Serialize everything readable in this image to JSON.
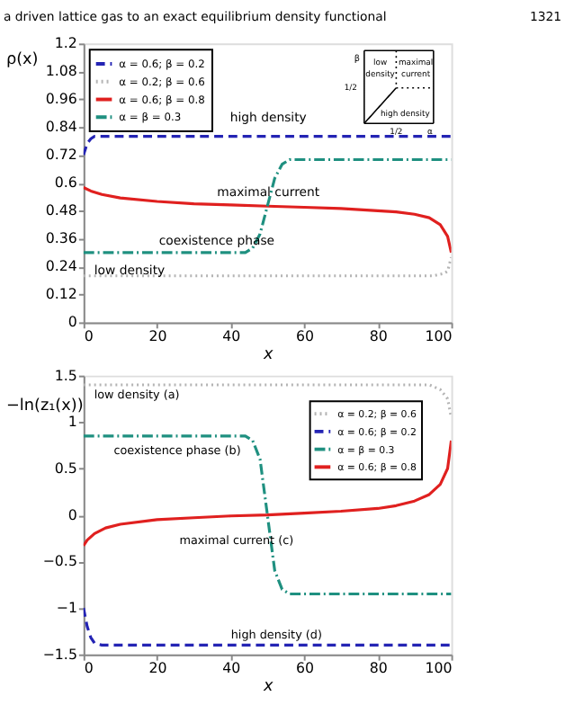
{
  "chart_data": [
    {
      "type": "line",
      "ylabel": "ρ(x)",
      "xlabel": "x",
      "xlim": [
        0,
        100
      ],
      "xticks": [
        0,
        20,
        40,
        60,
        80,
        100
      ],
      "ylim": [
        0,
        1.2
      ],
      "yticks": [
        0,
        0.12,
        0.24,
        0.36,
        0.48,
        0.6,
        0.72,
        0.84,
        0.96,
        1.08,
        1.2
      ],
      "grid": false,
      "legend": "top left",
      "series": [
        {
          "name": "α = 0.6; β = 0.2",
          "color": "#2424b4",
          "line_style": "dashed",
          "x": [
            0,
            1,
            2,
            3,
            5,
            100
          ],
          "values": [
            0.72,
            0.77,
            0.79,
            0.8,
            0.8,
            0.8
          ]
        },
        {
          "name": "α = 0.2; β = 0.6",
          "color": "#b4b4b4",
          "line_style": "dotted",
          "x": [
            0,
            95,
            98,
            99,
            100
          ],
          "values": [
            0.2,
            0.2,
            0.21,
            0.22,
            0.28
          ]
        },
        {
          "name": "α = 0.6; β = 0.8",
          "color": "#e0201f",
          "line_style": "solid",
          "x": [
            0,
            2,
            5,
            10,
            20,
            30,
            40,
            50,
            60,
            70,
            80,
            85,
            90,
            94,
            97,
            99,
            100
          ],
          "values": [
            0.58,
            0.565,
            0.55,
            0.535,
            0.52,
            0.51,
            0.505,
            0.5,
            0.495,
            0.49,
            0.48,
            0.475,
            0.465,
            0.45,
            0.42,
            0.37,
            0.3
          ]
        },
        {
          "name": "α = β = 0.3",
          "color": "#1f9080",
          "line_style": "dashdot",
          "x": [
            0,
            44,
            46,
            48,
            50,
            52,
            54,
            56,
            58,
            100
          ],
          "values": [
            0.3,
            0.3,
            0.32,
            0.38,
            0.5,
            0.62,
            0.68,
            0.7,
            0.7,
            0.7
          ]
        }
      ],
      "annotations": [
        "a driven lattice gas to an exact equilibrium density functional",
        "1321",
        "β",
        "1/2",
        "low\ndensity",
        "maximal\ncurrent",
        "high density",
        "1/2",
        "α",
        "high density",
        "maximal current",
        "coexistence phase",
        "low density"
      ]
    },
    {
      "type": "line",
      "ylabel": "−ln(z₁(x))",
      "xlabel": "x",
      "xlim": [
        0,
        100
      ],
      "xticks": [
        0,
        20,
        40,
        60,
        80,
        100
      ],
      "ylim": [
        -1.5,
        1.5
      ],
      "yticks": [
        -1.5,
        -1,
        -0.5,
        0,
        0.5,
        1,
        1.5
      ],
      "grid": false,
      "legend": "top right",
      "series": [
        {
          "name": "α = 0.2; β = 0.6",
          "color": "#b4b4b4",
          "line_style": "dotted",
          "x": [
            0,
            94,
            97,
            99,
            100
          ],
          "values": [
            1.4,
            1.4,
            1.35,
            1.25,
            1.05
          ]
        },
        {
          "name": "α = 0.6; β = 0.2",
          "color": "#2424b4",
          "line_style": "dashed",
          "x": [
            0,
            1,
            2,
            3,
            5,
            100
          ],
          "values": [
            -1.0,
            -1.2,
            -1.32,
            -1.38,
            -1.4,
            -1.4
          ]
        },
        {
          "name": "α = β = 0.3",
          "color": "#1f9080",
          "line_style": "dashdot",
          "x": [
            0,
            44,
            46,
            48,
            50,
            52,
            54,
            56,
            58,
            100
          ],
          "values": [
            0.85,
            0.85,
            0.8,
            0.6,
            0,
            -0.6,
            -0.8,
            -0.85,
            -0.85,
            -0.85
          ]
        },
        {
          "name": "α = 0.6; β = 0.8",
          "color": "#e0201f",
          "line_style": "solid",
          "x": [
            0,
            1,
            3,
            6,
            10,
            20,
            30,
            40,
            50,
            60,
            70,
            80,
            85,
            90,
            94,
            97,
            99,
            100
          ],
          "values": [
            -0.33,
            -0.27,
            -0.2,
            -0.14,
            -0.1,
            -0.05,
            -0.03,
            -0.01,
            0,
            0.02,
            0.04,
            0.07,
            0.1,
            0.15,
            0.22,
            0.33,
            0.5,
            0.8
          ]
        }
      ],
      "annotations": [
        "low density  (a)",
        "coexistence phase  (b)",
        "maximal current  (c)",
        "high density  (d)"
      ]
    }
  ]
}
